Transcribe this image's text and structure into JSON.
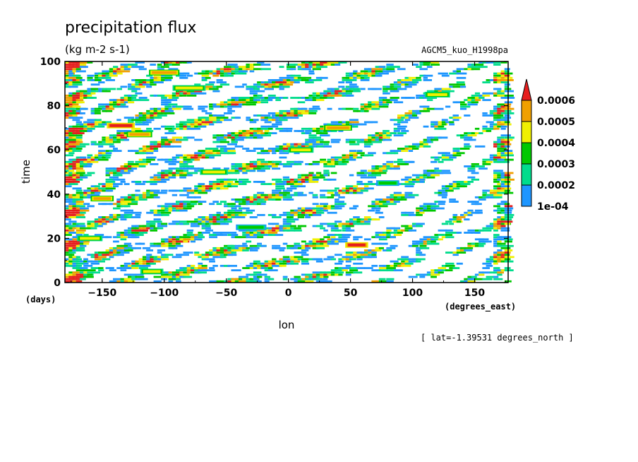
{
  "chart_data": {
    "type": "heatmap",
    "title": "precipitation flux",
    "units": "(kg m-2 s-1)",
    "dataset": "AGCM5_kuo_H1998pa",
    "xlabel": "lon",
    "ylabel": "time",
    "x_unit_label": "(degrees_east)",
    "y_unit_label": "(days)",
    "footnote": "[ lat=-1.39531 degrees_north ]",
    "xlim": [
      -180,
      177
    ],
    "ylim": [
      0,
      100
    ],
    "xticks": [
      -150,
      -100,
      -50,
      0,
      50,
      100,
      150
    ],
    "yticks": [
      0,
      20,
      40,
      60,
      80,
      100
    ],
    "xtick_labels": [
      "−150",
      "−100",
      "−50",
      "0",
      "50",
      "100",
      "150"
    ],
    "ytick_labels": [
      "0",
      "20",
      "40",
      "60",
      "80",
      "100"
    ],
    "colorbar": {
      "levels": [
        "1e-04",
        "0.0002",
        "0.0003",
        "0.0004",
        "0.0005",
        "0.0006"
      ],
      "colors": [
        "#1e96ff",
        "#00dc8c",
        "#00c800",
        "#f0f000",
        "#f0a000",
        "#e61e1e"
      ],
      "extend": "max"
    },
    "bands": [
      {
        "lon": 55,
        "time": 17,
        "len": 14,
        "level": 5
      },
      {
        "lon": -135,
        "time": 71,
        "len": 18,
        "level": 5
      },
      {
        "lon": -120,
        "time": 67,
        "len": 16,
        "level": 4
      },
      {
        "lon": -100,
        "time": 95,
        "len": 20,
        "level": 4
      },
      {
        "lon": -80,
        "time": 88,
        "len": 22,
        "level": 3
      },
      {
        "lon": -60,
        "time": 50,
        "len": 18,
        "level": 3
      },
      {
        "lon": -30,
        "time": 25,
        "len": 20,
        "level": 2
      },
      {
        "lon": 10,
        "time": 60,
        "len": 16,
        "level": 3
      },
      {
        "lon": 40,
        "time": 70,
        "len": 18,
        "level": 4
      },
      {
        "lon": 80,
        "time": 45,
        "len": 14,
        "level": 2
      },
      {
        "lon": 120,
        "time": 85,
        "len": 16,
        "level": 3
      },
      {
        "lon": -150,
        "time": 38,
        "len": 14,
        "level": 4
      },
      {
        "lon": -160,
        "time": 20,
        "len": 16,
        "level": 3
      },
      {
        "lon": -110,
        "time": 5,
        "len": 14,
        "level": 3
      }
    ]
  }
}
